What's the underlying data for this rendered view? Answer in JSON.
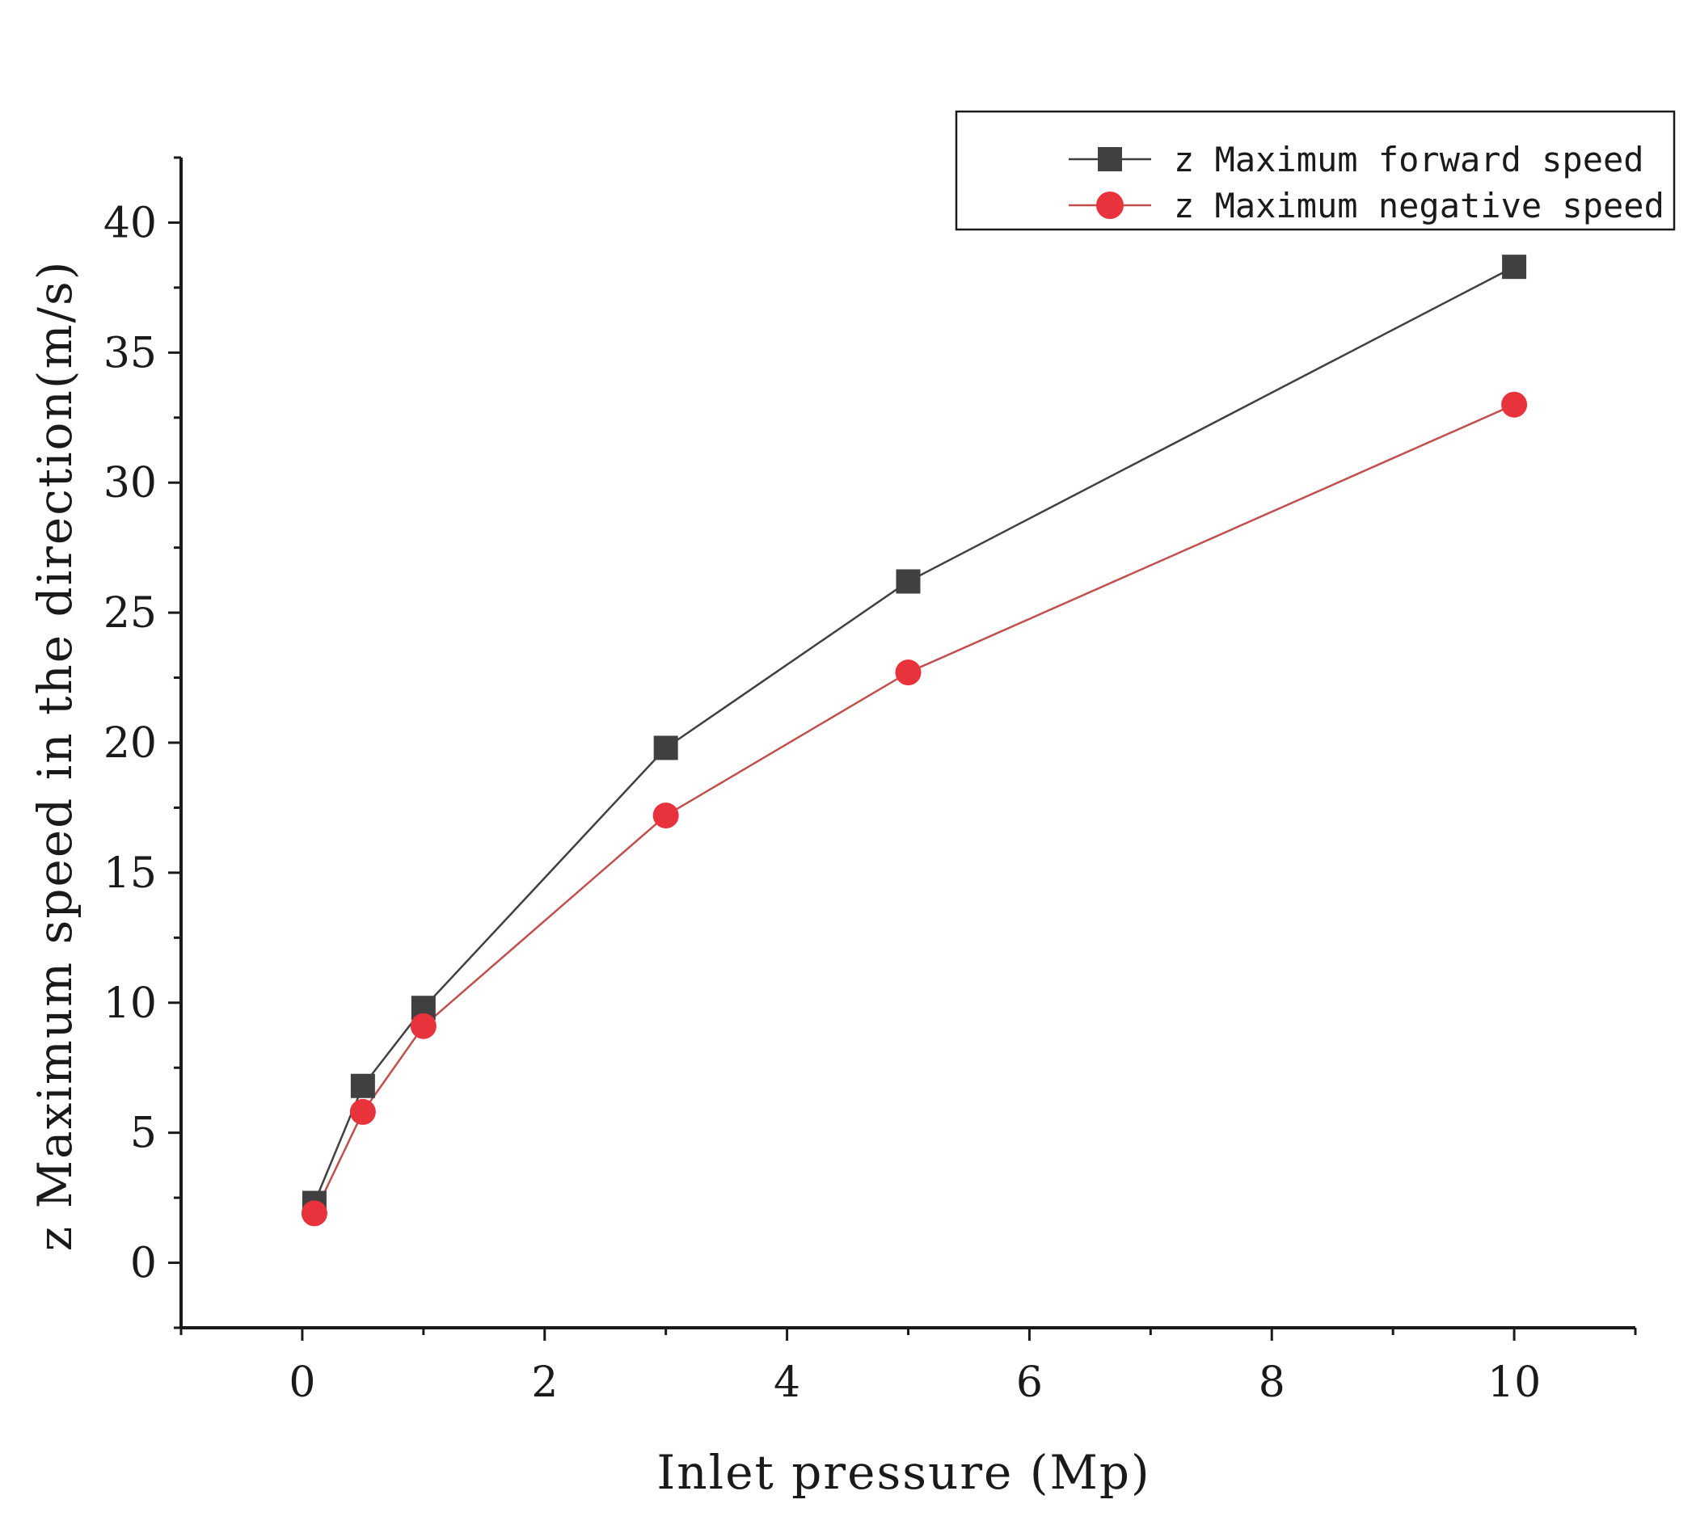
{
  "chart_data": {
    "type": "line",
    "title": "",
    "xlabel": "Inlet pressure (Mp)",
    "ylabel": "z Maximum speed in the direction(m/s)",
    "xlim": [
      -1,
      11
    ],
    "ylim": [
      -2.5,
      42.5
    ],
    "xticks": [
      0,
      2,
      4,
      6,
      8,
      10
    ],
    "yticks": [
      0,
      5,
      10,
      15,
      20,
      25,
      30,
      35,
      40
    ],
    "x": [
      0.1,
      0.5,
      1,
      3,
      5,
      10
    ],
    "series": [
      {
        "name": "z Maximum forward speed",
        "marker": "square",
        "color": "#404040",
        "line_color": "#404040",
        "values": [
          2.3,
          6.8,
          9.8,
          19.8,
          26.2,
          38.3
        ]
      },
      {
        "name": "z Maximum negative speed",
        "marker": "circle",
        "color": "#e8323c",
        "line_color": "#c0504d",
        "values": [
          1.9,
          5.8,
          9.1,
          17.2,
          22.7,
          33.0
        ]
      }
    ],
    "legend_position": "top-right",
    "grid": false
  }
}
